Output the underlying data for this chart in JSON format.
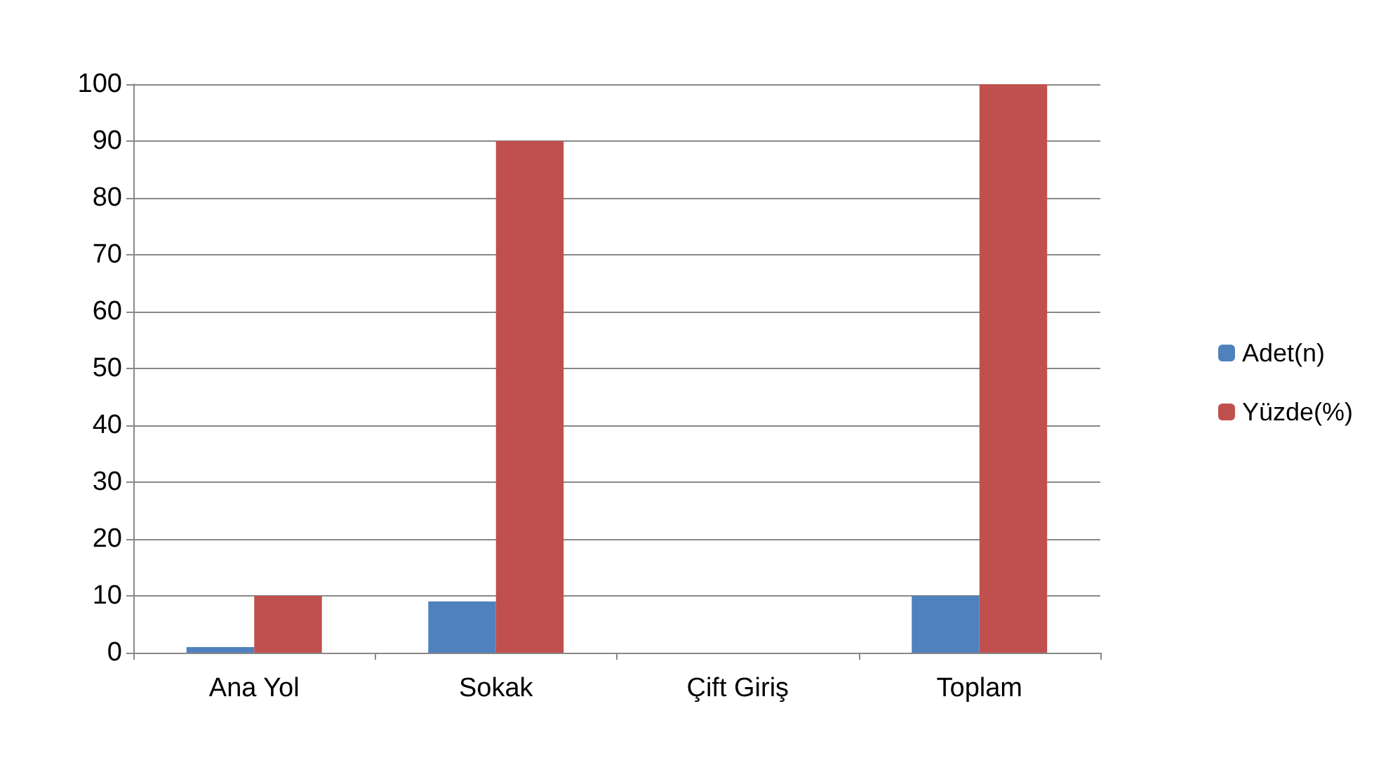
{
  "chart_data": {
    "type": "bar",
    "categories": [
      "Ana Yol",
      "Sokak",
      "Çift Giriş",
      "Toplam"
    ],
    "series": [
      {
        "name": "Adet(n)",
        "color": "#4f81bd",
        "values": [
          1,
          9,
          0,
          10
        ]
      },
      {
        "name": "Yüzde(%)",
        "color": "#c0504d",
        "values": [
          10,
          90,
          0,
          100
        ]
      }
    ],
    "ylim": [
      0,
      100
    ],
    "yticks": [
      0,
      10,
      20,
      30,
      40,
      50,
      60,
      70,
      80,
      90,
      100
    ],
    "grid": "y",
    "legend": "right"
  }
}
